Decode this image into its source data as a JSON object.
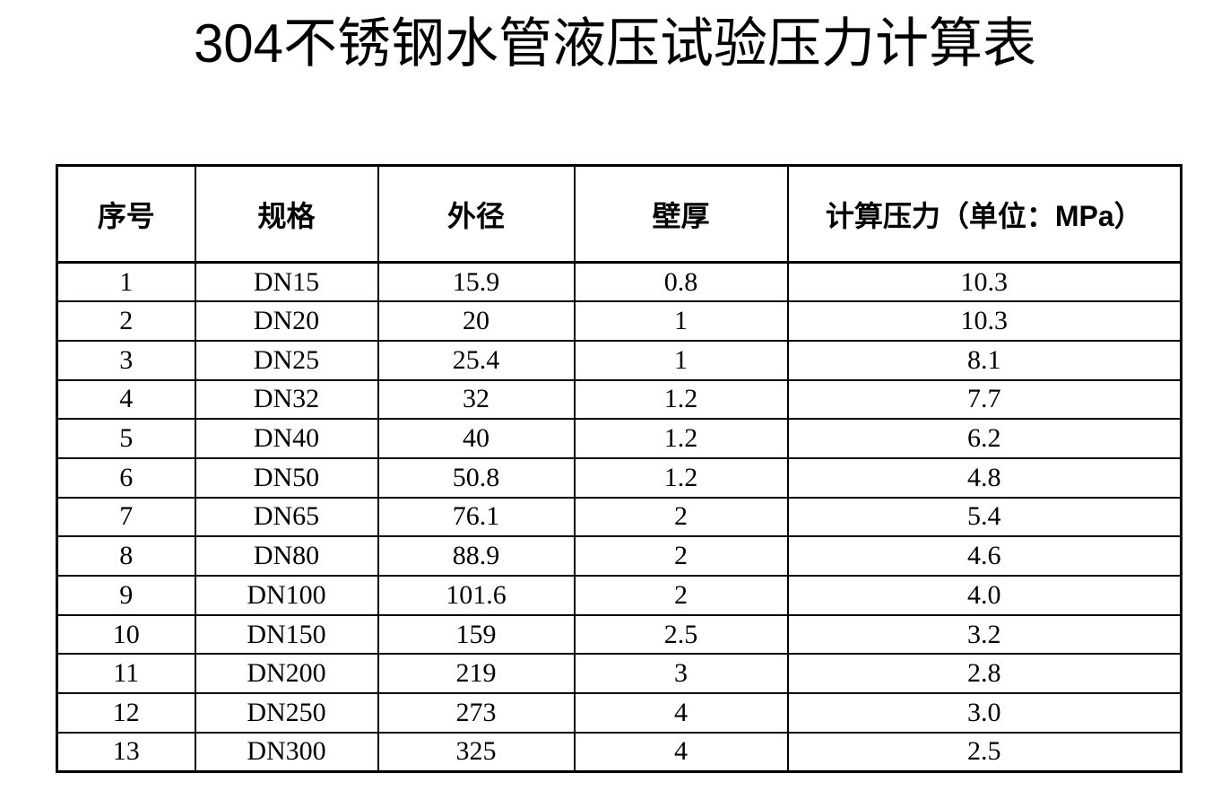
{
  "page": {
    "title": "304不锈钢水管液压试验压力计算表",
    "background_color": "#ffffff",
    "text_color": "#000000",
    "border_color": "#000000"
  },
  "table": {
    "columns": [
      "序号",
      "规格",
      "外径",
      "壁厚",
      "计算压力（单位：MPa）"
    ],
    "rows": [
      [
        "1",
        "DN15",
        "15.9",
        "0.8",
        "10.3"
      ],
      [
        "2",
        "DN20",
        "20",
        "1",
        "10.3"
      ],
      [
        "3",
        "DN25",
        "25.4",
        "1",
        "8.1"
      ],
      [
        "4",
        "DN32",
        "32",
        "1.2",
        "7.7"
      ],
      [
        "5",
        "DN40",
        "40",
        "1.2",
        "6.2"
      ],
      [
        "6",
        "DN50",
        "50.8",
        "1.2",
        "4.8"
      ],
      [
        "7",
        "DN65",
        "76.1",
        "2",
        "5.4"
      ],
      [
        "8",
        "DN80",
        "88.9",
        "2",
        "4.6"
      ],
      [
        "9",
        "DN100",
        "101.6",
        "2",
        "4.0"
      ],
      [
        "10",
        "DN150",
        "159",
        "2.5",
        "3.2"
      ],
      [
        "11",
        "DN200",
        "219",
        "3",
        "2.8"
      ],
      [
        "12",
        "DN250",
        "273",
        "4",
        "3.0"
      ],
      [
        "13",
        "DN300",
        "325",
        "4",
        "2.5"
      ]
    ]
  }
}
